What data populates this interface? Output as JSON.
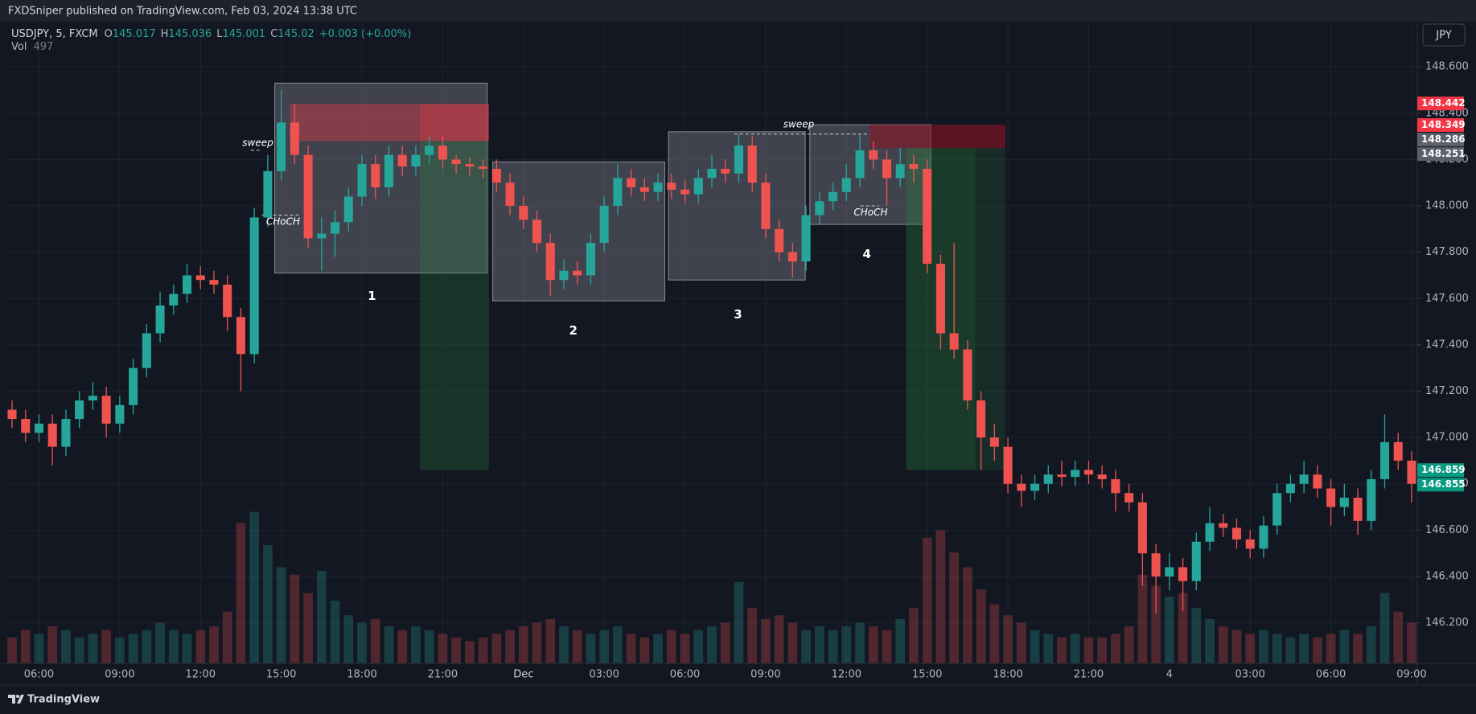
{
  "header": {
    "publisher": "FXDSniper published on TradingView.com, Feb 03, 2024 13:38 UTC"
  },
  "footer": {
    "brand": "TradingView"
  },
  "chart_data": {
    "type": "candlestick",
    "symbol": "USDJPY, 5, FXCM",
    "legend": [
      {
        "label": "O",
        "value": 145.017
      },
      {
        "label": "H",
        "value": 145.036
      },
      {
        "label": "L",
        "value": 145.001
      },
      {
        "label": "C",
        "value": 145.02
      }
    ],
    "change": "+0.003 (+0.00%)",
    "volume_label": "Vol",
    "volume_last": 497,
    "currency": "JPY",
    "up_color": "#26a69a",
    "down_color": "#ef5350",
    "grid": true,
    "x": [
      5,
      5.5,
      6,
      6.5,
      7,
      7.5,
      8,
      8.5,
      9,
      9.5,
      10,
      10.5,
      11,
      11.5,
      12,
      12.5,
      13,
      13.5,
      14,
      14.5,
      15,
      15.5,
      16,
      16.5,
      17,
      17.5,
      18,
      18.5,
      19,
      19.5,
      20,
      20.5,
      21,
      21.5,
      22,
      22.5,
      23,
      23.5,
      24,
      24.5,
      25,
      25.5,
      26,
      26.5,
      27,
      27.5,
      28,
      28.5,
      29,
      29.5,
      30,
      30.5,
      31,
      31.5,
      32,
      32.5,
      33,
      33.5,
      34,
      34.5,
      35,
      35.5,
      36,
      36.5,
      37,
      37.5,
      38,
      38.5,
      39,
      39.5,
      40,
      40.5,
      41,
      41.5,
      42,
      42.5,
      43,
      43.5,
      44,
      44.5,
      45,
      45.5,
      46,
      46.5,
      47,
      47.5,
      48,
      48.5,
      49,
      49.5,
      50,
      50.5,
      51,
      51.5,
      52,
      52.5,
      53,
      53.5,
      54,
      54.5,
      55,
      55.5,
      56,
      56.5,
      57
    ],
    "open": [
      147.12,
      147.08,
      147.02,
      147.06,
      146.96,
      147.08,
      147.16,
      147.18,
      147.06,
      147.14,
      147.3,
      147.45,
      147.57,
      147.62,
      147.7,
      147.68,
      147.66,
      147.52,
      147.36,
      147.95,
      148.15,
      148.36,
      148.22,
      147.86,
      147.88,
      147.93,
      148.04,
      148.18,
      148.08,
      148.22,
      148.17,
      148.22,
      148.26,
      148.2,
      148.18,
      148.17,
      148.16,
      148.1,
      148.0,
      147.94,
      147.84,
      147.68,
      147.72,
      147.7,
      147.84,
      148.0,
      148.12,
      148.08,
      148.06,
      148.1,
      148.07,
      148.05,
      148.12,
      148.16,
      148.14,
      148.26,
      148.1,
      147.9,
      147.8,
      147.76,
      147.96,
      148.02,
      148.06,
      148.12,
      148.24,
      148.2,
      148.12,
      148.18,
      148.16,
      147.75,
      147.45,
      147.38,
      147.16,
      147.0,
      146.96,
      146.8,
      146.77,
      146.8,
      146.84,
      146.83,
      146.86,
      146.84,
      146.82,
      146.76,
      146.72,
      146.5,
      146.4,
      146.44,
      146.38,
      146.55,
      146.63,
      146.61,
      146.56,
      146.52,
      146.62,
      146.76,
      146.8,
      146.84,
      146.78,
      146.7,
      146.74,
      146.64,
      146.82,
      146.98,
      146.9
    ],
    "high": [
      147.16,
      147.12,
      147.1,
      147.1,
      147.12,
      147.2,
      147.24,
      147.22,
      147.18,
      147.34,
      147.49,
      147.63,
      147.66,
      147.75,
      147.74,
      147.72,
      147.7,
      147.56,
      147.99,
      148.22,
      148.5,
      148.44,
      148.26,
      147.95,
      147.98,
      148.08,
      148.22,
      148.22,
      148.26,
      148.26,
      148.26,
      148.3,
      148.3,
      148.22,
      148.21,
      148.2,
      148.2,
      148.14,
      148.04,
      147.98,
      147.88,
      147.77,
      147.76,
      147.88,
      148.04,
      148.18,
      148.16,
      148.12,
      148.14,
      148.14,
      148.11,
      148.16,
      148.22,
      148.2,
      148.31,
      148.3,
      148.14,
      147.94,
      147.84,
      148.0,
      148.06,
      148.1,
      148.18,
      148.31,
      148.28,
      148.24,
      148.25,
      148.22,
      148.2,
      147.79,
      147.84,
      147.42,
      147.2,
      147.06,
      147.0,
      146.84,
      146.84,
      146.88,
      146.9,
      146.9,
      146.9,
      146.88,
      146.86,
      146.8,
      146.76,
      146.54,
      146.5,
      146.48,
      146.59,
      146.7,
      146.67,
      146.65,
      146.6,
      146.66,
      146.8,
      146.84,
      146.9,
      146.88,
      146.82,
      146.8,
      146.78,
      146.86,
      147.1,
      147.02,
      146.94
    ],
    "low": [
      147.04,
      146.98,
      146.98,
      146.88,
      146.92,
      147.04,
      147.12,
      147.0,
      147.02,
      147.1,
      147.26,
      147.41,
      147.53,
      147.58,
      147.64,
      147.62,
      147.46,
      147.2,
      147.32,
      147.91,
      148.11,
      148.18,
      147.82,
      147.72,
      147.78,
      147.89,
      148.0,
      148.03,
      148.04,
      148.13,
      148.13,
      148.18,
      148.16,
      148.14,
      148.13,
      148.12,
      148.06,
      147.96,
      147.9,
      147.8,
      147.61,
      147.64,
      147.66,
      147.66,
      147.8,
      147.96,
      148.04,
      148.02,
      148.02,
      148.03,
      148.01,
      148.01,
      148.08,
      148.1,
      148.1,
      148.06,
      147.86,
      147.76,
      147.69,
      147.72,
      147.92,
      147.98,
      148.02,
      148.08,
      148.16,
      148.0,
      148.08,
      148.1,
      147.71,
      147.38,
      147.34,
      147.12,
      146.86,
      146.9,
      146.76,
      146.7,
      146.73,
      146.76,
      146.79,
      146.79,
      146.8,
      146.78,
      146.68,
      146.68,
      146.36,
      146.24,
      146.34,
      146.25,
      146.34,
      146.51,
      146.57,
      146.52,
      146.48,
      146.48,
      146.58,
      146.72,
      146.76,
      146.74,
      146.62,
      146.66,
      146.58,
      146.6,
      146.78,
      146.86,
      146.72
    ],
    "close": [
      147.08,
      147.02,
      147.06,
      146.96,
      147.08,
      147.16,
      147.18,
      147.06,
      147.14,
      147.3,
      147.45,
      147.57,
      147.62,
      147.7,
      147.68,
      147.66,
      147.52,
      147.36,
      147.95,
      148.15,
      148.36,
      148.22,
      147.86,
      147.88,
      147.93,
      148.04,
      148.18,
      148.08,
      148.22,
      148.17,
      148.22,
      148.26,
      148.2,
      148.18,
      148.17,
      148.16,
      148.1,
      148.0,
      147.94,
      147.84,
      147.68,
      147.72,
      147.7,
      147.84,
      148.0,
      148.12,
      148.08,
      148.06,
      148.1,
      148.07,
      148.05,
      148.12,
      148.16,
      148.14,
      148.26,
      148.1,
      147.9,
      147.8,
      147.76,
      147.96,
      148.02,
      148.06,
      148.12,
      148.24,
      148.2,
      148.12,
      148.18,
      148.16,
      147.75,
      147.45,
      147.38,
      147.16,
      147.0,
      146.96,
      146.8,
      146.77,
      146.8,
      146.84,
      146.83,
      146.86,
      146.84,
      146.82,
      146.76,
      146.72,
      146.5,
      146.4,
      146.44,
      146.38,
      146.55,
      146.63,
      146.61,
      146.56,
      146.52,
      146.62,
      146.76,
      146.8,
      146.84,
      146.78,
      146.7,
      146.74,
      146.64,
      146.82,
      146.98,
      146.9,
      146.8
    ],
    "volume": [
      700,
      900,
      800,
      1000,
      900,
      700,
      800,
      900,
      700,
      800,
      900,
      1100,
      900,
      800,
      900,
      1000,
      1400,
      3800,
      4100,
      3200,
      2600,
      2400,
      1900,
      2500,
      1700,
      1300,
      1100,
      1200,
      1000,
      900,
      1000,
      900,
      800,
      700,
      600,
      700,
      800,
      900,
      1000,
      1100,
      1200,
      1000,
      900,
      800,
      900,
      1000,
      800,
      700,
      800,
      900,
      800,
      900,
      1000,
      1100,
      2200,
      1500,
      1200,
      1300,
      1100,
      900,
      1000,
      900,
      1000,
      1100,
      1000,
      900,
      1200,
      1500,
      3400,
      3600,
      3000,
      2600,
      2000,
      1600,
      1300,
      1100,
      900,
      800,
      700,
      800,
      700,
      700,
      800,
      1000,
      2400,
      2100,
      1800,
      1900,
      1500,
      1200,
      1000,
      900,
      800,
      900,
      800,
      700,
      800,
      700,
      800,
      900,
      800,
      1000,
      1900,
      1400,
      1100
    ],
    "vlim": [
      0,
      4200
    ],
    "xlim": [
      4.82,
      57.21
    ],
    "xticks": [
      {
        "value": 6,
        "label": "06:00"
      },
      {
        "value": 9,
        "label": "09:00"
      },
      {
        "value": 12,
        "label": "12:00"
      },
      {
        "value": 15,
        "label": "15:00"
      },
      {
        "value": 18,
        "label": "18:00"
      },
      {
        "value": 21,
        "label": "21:00"
      },
      {
        "value": 24,
        "label": "Dec"
      },
      {
        "value": 27,
        "label": "03:00"
      },
      {
        "value": 30,
        "label": "06:00"
      },
      {
        "value": 33,
        "label": "09:00"
      },
      {
        "value": 36,
        "label": "12:00"
      },
      {
        "value": 39,
        "label": "15:00"
      },
      {
        "value": 42,
        "label": "18:00"
      },
      {
        "value": 45,
        "label": "21:00"
      },
      {
        "value": 48,
        "label": "4"
      },
      {
        "value": 51,
        "label": "03:00"
      },
      {
        "value": 54,
        "label": "06:00"
      },
      {
        "value": 57,
        "label": "09:00"
      }
    ],
    "ylim": [
      146.025,
      148.795
    ],
    "yticks": [
      {
        "value": 146.2,
        "label": "146.200"
      },
      {
        "value": 146.4,
        "label": "146.400"
      },
      {
        "value": 146.6,
        "label": "146.600"
      },
      {
        "value": 146.8,
        "label": "146.800"
      },
      {
        "value": 147.0,
        "label": "147.000"
      },
      {
        "value": 147.2,
        "label": "147.200"
      },
      {
        "value": 147.4,
        "label": "147.400"
      },
      {
        "value": 147.6,
        "label": "147.600"
      },
      {
        "value": 147.8,
        "label": "147.800"
      },
      {
        "value": 148.0,
        "label": "148.000"
      },
      {
        "value": 148.2,
        "label": "148.200"
      },
      {
        "value": 148.4,
        "label": "148.400"
      },
      {
        "value": 148.6,
        "label": "148.600"
      }
    ],
    "boxes": [
      {
        "x": [
          14.76,
          22.65
        ],
        "y": [
          147.71,
          148.53
        ]
      },
      {
        "x": [
          22.86,
          29.25
        ],
        "y": [
          147.59,
          148.19
        ]
      },
      {
        "x": [
          29.39,
          34.47
        ],
        "y": [
          147.68,
          148.32
        ]
      },
      {
        "x": [
          34.64,
          39.13
        ],
        "y": [
          147.92,
          148.35
        ]
      }
    ],
    "zones": [
      {
        "x": [
          15.32,
          20.15
        ],
        "y": [
          148.28,
          148.44
        ],
        "color": "rgba(242,54,69,0.38)"
      },
      {
        "x": [
          20.15,
          22.72
        ],
        "y": [
          148.28,
          148.44
        ],
        "color": "rgba(242,54,69,0.55)"
      },
      {
        "x": [
          20.15,
          22.72
        ],
        "y": [
          146.86,
          148.28
        ],
        "color": "rgba(40,130,60,0.28)"
      },
      {
        "x": [
          36.87,
          41.9
        ],
        "y": [
          148.25,
          148.35
        ],
        "color": "rgba(140,20,35,0.6)"
      },
      {
        "x": [
          38.22,
          40.79
        ],
        "y": [
          146.86,
          148.25
        ],
        "color": "rgba(40,130,60,0.34)"
      },
      {
        "x": [
          40.79,
          41.9
        ],
        "y": [
          146.86,
          148.25
        ],
        "color": "rgba(40,130,60,0.2)"
      }
    ],
    "dashed_lines": [
      {
        "x": [
          13.87,
          14.28
        ],
        "y": 148.24
      },
      {
        "x": [
          14.28,
          15.74
        ],
        "y": 147.96
      },
      {
        "x": [
          31.83,
          36.87
        ],
        "y": 148.31
      },
      {
        "x": [
          36.52,
          37.21
        ],
        "y": 148.0
      }
    ],
    "annotations": [
      {
        "text": "1",
        "x": 18.37,
        "y": 147.61,
        "style": "number"
      },
      {
        "text": "2",
        "x": 25.85,
        "y": 147.46,
        "style": "number"
      },
      {
        "text": "3",
        "x": 31.97,
        "y": 147.53,
        "style": "number"
      },
      {
        "text": "4",
        "x": 36.76,
        "y": 147.79,
        "style": "number"
      },
      {
        "text": "sweep",
        "x": 14.13,
        "y": 148.27,
        "style": "italic"
      },
      {
        "text": "sweep",
        "x": 34.23,
        "y": 148.35,
        "style": "italic"
      },
      {
        "text": "CHoCH",
        "x": 15.07,
        "y": 147.93,
        "style": "italic"
      },
      {
        "text": "CHoCH",
        "x": 36.9,
        "y": 147.97,
        "style": "italic"
      }
    ],
    "price_tags": [
      {
        "value": 148.442,
        "color": "#f23645"
      },
      {
        "value": 148.349,
        "color": "#f23645"
      },
      {
        "value": 148.286,
        "color": "#5d606b"
      },
      {
        "value": 148.251,
        "color": "#5d606b"
      },
      {
        "value": 146.859,
        "color": "#089981"
      },
      {
        "value": 146.855,
        "color": "#089981"
      }
    ]
  }
}
